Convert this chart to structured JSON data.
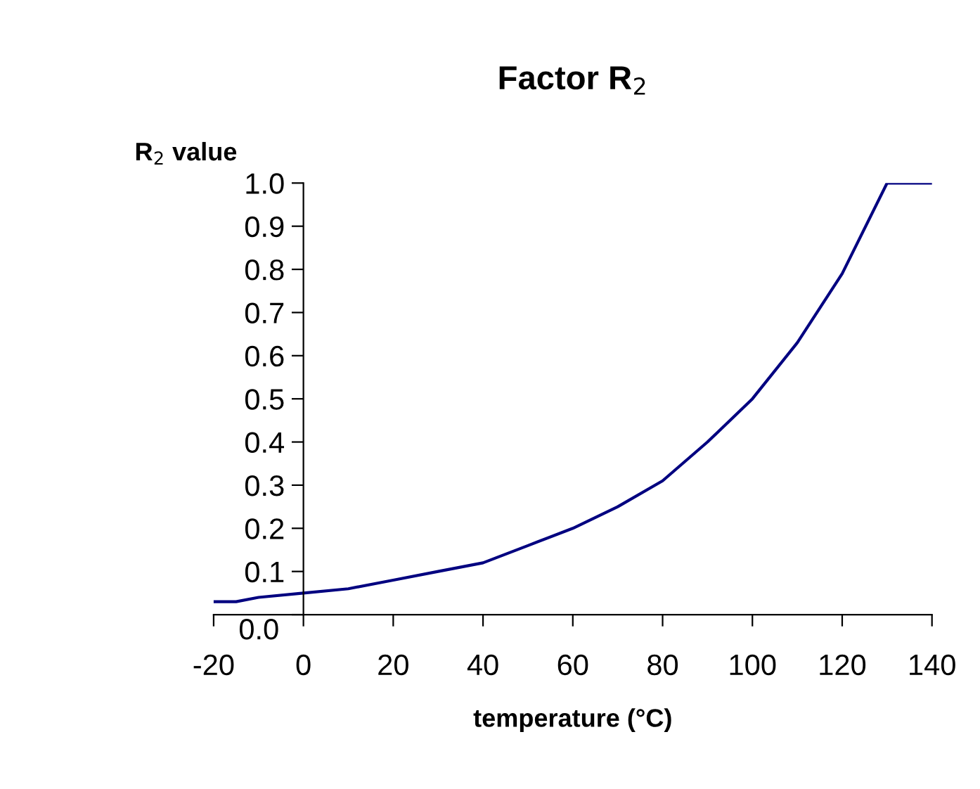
{
  "chart_data": {
    "type": "line",
    "title": "Factor R$_{2}$",
    "xlabel": "temperature (°C)",
    "ylabel": "R$_{2}$ value",
    "x": [
      -20,
      -15,
      -10,
      0,
      10,
      20,
      30,
      40,
      50,
      60,
      70,
      80,
      90,
      100,
      110,
      120,
      130,
      140
    ],
    "series": [
      {
        "color": "#000080",
        "values": [
          0.03,
          0.03,
          0.04,
          0.05,
          0.06,
          0.08,
          0.1,
          0.12,
          0.16,
          0.2,
          0.25,
          0.31,
          0.4,
          0.5,
          0.63,
          0.79,
          1.0,
          1.0
        ]
      }
    ],
    "xlim": [
      -20,
      140
    ],
    "xticks": [
      -20,
      0,
      20,
      40,
      60,
      80,
      100,
      120,
      140
    ],
    "ylim": [
      0,
      1.0
    ],
    "yticks": [
      {
        "value": 0,
        "label": "0.0"
      },
      0.1,
      0.2,
      0.3,
      0.4,
      0.5,
      0.6,
      0.7,
      0.8,
      0.9,
      {
        "value": 1.0,
        "label": "1.0"
      }
    ],
    "grid": false,
    "legend": false,
    "marker": "none",
    "line_style": "solid"
  }
}
